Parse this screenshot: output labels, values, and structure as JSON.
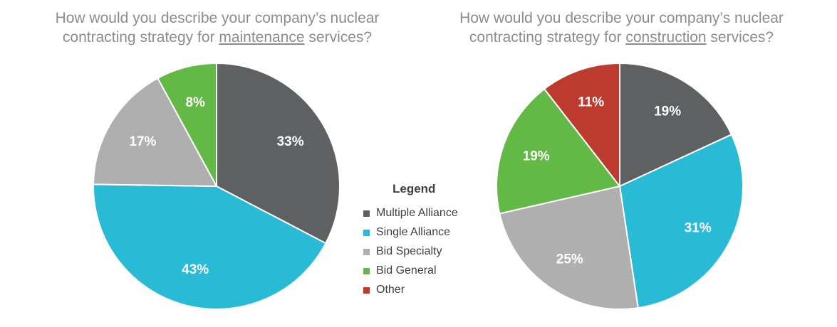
{
  "legend": {
    "title": "Legend",
    "items": [
      {
        "label": "Multiple Alliance",
        "color": "#5f6062"
      },
      {
        "label": "Single Alliance",
        "color": "#29bad6"
      },
      {
        "label": "Bid Specialty",
        "color": "#afafaf"
      },
      {
        "label": "Bid General",
        "color": "#62b946"
      },
      {
        "label": "Other",
        "color": "#bd3a2f"
      }
    ]
  },
  "chart_data": [
    {
      "type": "pie",
      "title": {
        "line1": "How would you describe your company’s nuclear",
        "line2_before": "contracting strategy for ",
        "line2_underlined": "maintenance",
        "line2_after": " services?"
      },
      "categories": [
        "Multiple Alliance",
        "Single Alliance",
        "Bid Specialty",
        "Bid General"
      ],
      "values": [
        33,
        43,
        17,
        8
      ],
      "labels": [
        "33%",
        "43%",
        "17%",
        "8%"
      ],
      "colors": [
        "#5f6062",
        "#29bad6",
        "#afafaf",
        "#62b946"
      ],
      "start": "12 o'clock",
      "direction": "clockwise"
    },
    {
      "type": "pie",
      "title": {
        "line1": "How would you describe your company’s nuclear",
        "line2_before": "contracting strategy for ",
        "line2_underlined": "construction",
        "line2_after": " services?"
      },
      "categories": [
        "Multiple Alliance",
        "Single Alliance",
        "Bid Specialty",
        "Bid General",
        "Other"
      ],
      "values": [
        19,
        31,
        25,
        19,
        11
      ],
      "labels": [
        "19%",
        "31%",
        "25%",
        "19%",
        "11%"
      ],
      "colors": [
        "#5f6062",
        "#29bad6",
        "#afafaf",
        "#62b946",
        "#bd3a2f"
      ],
      "start": "12 o'clock",
      "direction": "clockwise"
    }
  ]
}
